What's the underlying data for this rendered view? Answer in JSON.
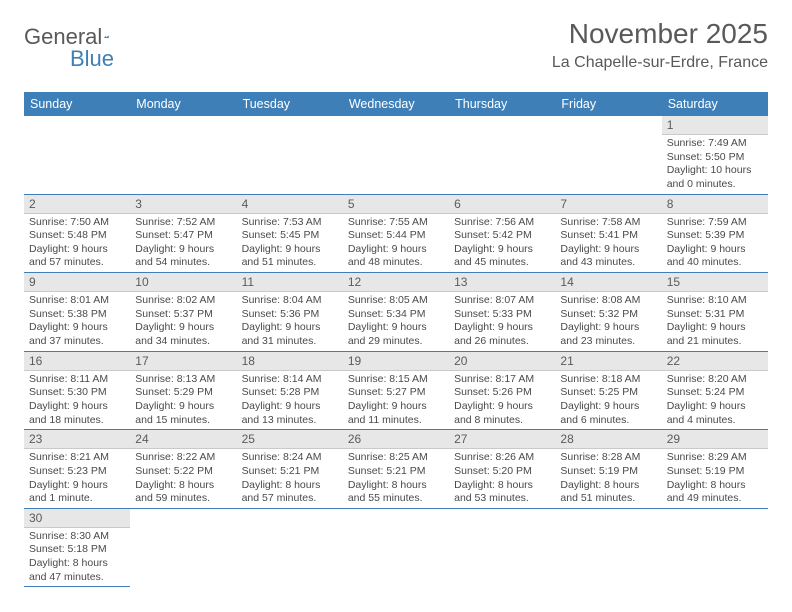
{
  "logo": {
    "word1": "General",
    "word2": "Blue"
  },
  "title": "November 2025",
  "location": "La Chapelle-sur-Erdre, France",
  "colors": {
    "brand_blue": "#3e7fb8",
    "grey_text": "#595959",
    "daynum_bg": "#e7e7e7"
  },
  "weekdays": [
    "Sunday",
    "Monday",
    "Tuesday",
    "Wednesday",
    "Thursday",
    "Friday",
    "Saturday"
  ],
  "weeks": [
    [
      null,
      null,
      null,
      null,
      null,
      null,
      {
        "n": "1",
        "sr": "Sunrise: 7:49 AM",
        "ss": "Sunset: 5:50 PM",
        "dl": "Daylight: 10 hours and 0 minutes."
      }
    ],
    [
      {
        "n": "2",
        "sr": "Sunrise: 7:50 AM",
        "ss": "Sunset: 5:48 PM",
        "dl": "Daylight: 9 hours and 57 minutes."
      },
      {
        "n": "3",
        "sr": "Sunrise: 7:52 AM",
        "ss": "Sunset: 5:47 PM",
        "dl": "Daylight: 9 hours and 54 minutes."
      },
      {
        "n": "4",
        "sr": "Sunrise: 7:53 AM",
        "ss": "Sunset: 5:45 PM",
        "dl": "Daylight: 9 hours and 51 minutes."
      },
      {
        "n": "5",
        "sr": "Sunrise: 7:55 AM",
        "ss": "Sunset: 5:44 PM",
        "dl": "Daylight: 9 hours and 48 minutes."
      },
      {
        "n": "6",
        "sr": "Sunrise: 7:56 AM",
        "ss": "Sunset: 5:42 PM",
        "dl": "Daylight: 9 hours and 45 minutes."
      },
      {
        "n": "7",
        "sr": "Sunrise: 7:58 AM",
        "ss": "Sunset: 5:41 PM",
        "dl": "Daylight: 9 hours and 43 minutes."
      },
      {
        "n": "8",
        "sr": "Sunrise: 7:59 AM",
        "ss": "Sunset: 5:39 PM",
        "dl": "Daylight: 9 hours and 40 minutes."
      }
    ],
    [
      {
        "n": "9",
        "sr": "Sunrise: 8:01 AM",
        "ss": "Sunset: 5:38 PM",
        "dl": "Daylight: 9 hours and 37 minutes."
      },
      {
        "n": "10",
        "sr": "Sunrise: 8:02 AM",
        "ss": "Sunset: 5:37 PM",
        "dl": "Daylight: 9 hours and 34 minutes."
      },
      {
        "n": "11",
        "sr": "Sunrise: 8:04 AM",
        "ss": "Sunset: 5:36 PM",
        "dl": "Daylight: 9 hours and 31 minutes."
      },
      {
        "n": "12",
        "sr": "Sunrise: 8:05 AM",
        "ss": "Sunset: 5:34 PM",
        "dl": "Daylight: 9 hours and 29 minutes."
      },
      {
        "n": "13",
        "sr": "Sunrise: 8:07 AM",
        "ss": "Sunset: 5:33 PM",
        "dl": "Daylight: 9 hours and 26 minutes."
      },
      {
        "n": "14",
        "sr": "Sunrise: 8:08 AM",
        "ss": "Sunset: 5:32 PM",
        "dl": "Daylight: 9 hours and 23 minutes."
      },
      {
        "n": "15",
        "sr": "Sunrise: 8:10 AM",
        "ss": "Sunset: 5:31 PM",
        "dl": "Daylight: 9 hours and 21 minutes."
      }
    ],
    [
      {
        "n": "16",
        "sr": "Sunrise: 8:11 AM",
        "ss": "Sunset: 5:30 PM",
        "dl": "Daylight: 9 hours and 18 minutes."
      },
      {
        "n": "17",
        "sr": "Sunrise: 8:13 AM",
        "ss": "Sunset: 5:29 PM",
        "dl": "Daylight: 9 hours and 15 minutes."
      },
      {
        "n": "18",
        "sr": "Sunrise: 8:14 AM",
        "ss": "Sunset: 5:28 PM",
        "dl": "Daylight: 9 hours and 13 minutes."
      },
      {
        "n": "19",
        "sr": "Sunrise: 8:15 AM",
        "ss": "Sunset: 5:27 PM",
        "dl": "Daylight: 9 hours and 11 minutes."
      },
      {
        "n": "20",
        "sr": "Sunrise: 8:17 AM",
        "ss": "Sunset: 5:26 PM",
        "dl": "Daylight: 9 hours and 8 minutes."
      },
      {
        "n": "21",
        "sr": "Sunrise: 8:18 AM",
        "ss": "Sunset: 5:25 PM",
        "dl": "Daylight: 9 hours and 6 minutes."
      },
      {
        "n": "22",
        "sr": "Sunrise: 8:20 AM",
        "ss": "Sunset: 5:24 PM",
        "dl": "Daylight: 9 hours and 4 minutes."
      }
    ],
    [
      {
        "n": "23",
        "sr": "Sunrise: 8:21 AM",
        "ss": "Sunset: 5:23 PM",
        "dl": "Daylight: 9 hours and 1 minute."
      },
      {
        "n": "24",
        "sr": "Sunrise: 8:22 AM",
        "ss": "Sunset: 5:22 PM",
        "dl": "Daylight: 8 hours and 59 minutes."
      },
      {
        "n": "25",
        "sr": "Sunrise: 8:24 AM",
        "ss": "Sunset: 5:21 PM",
        "dl": "Daylight: 8 hours and 57 minutes."
      },
      {
        "n": "26",
        "sr": "Sunrise: 8:25 AM",
        "ss": "Sunset: 5:21 PM",
        "dl": "Daylight: 8 hours and 55 minutes."
      },
      {
        "n": "27",
        "sr": "Sunrise: 8:26 AM",
        "ss": "Sunset: 5:20 PM",
        "dl": "Daylight: 8 hours and 53 minutes."
      },
      {
        "n": "28",
        "sr": "Sunrise: 8:28 AM",
        "ss": "Sunset: 5:19 PM",
        "dl": "Daylight: 8 hours and 51 minutes."
      },
      {
        "n": "29",
        "sr": "Sunrise: 8:29 AM",
        "ss": "Sunset: 5:19 PM",
        "dl": "Daylight: 8 hours and 49 minutes."
      }
    ],
    [
      {
        "n": "30",
        "sr": "Sunrise: 8:30 AM",
        "ss": "Sunset: 5:18 PM",
        "dl": "Daylight: 8 hours and 47 minutes."
      },
      null,
      null,
      null,
      null,
      null,
      null
    ]
  ]
}
